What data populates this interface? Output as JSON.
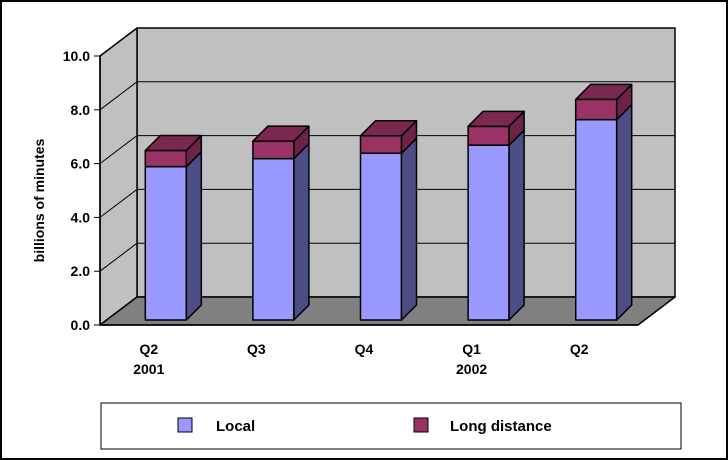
{
  "chart_data": {
    "type": "bar",
    "stacked": true,
    "three_d": true,
    "categories": [
      [
        "Q2",
        "2001"
      ],
      [
        "Q3"
      ],
      [
        "Q4"
      ],
      [
        "Q1",
        "2002"
      ],
      [
        "Q2"
      ]
    ],
    "series": [
      {
        "name": "Local",
        "values": [
          5.7,
          6.0,
          6.2,
          6.5,
          7.45
        ]
      },
      {
        "name": "Long distance",
        "values": [
          0.6,
          0.65,
          0.65,
          0.7,
          0.75
        ]
      }
    ],
    "ylabel": "billions of minutes",
    "ylim": [
      0,
      10
    ],
    "yticks": [
      "0.0",
      "2.0",
      "4.0",
      "6.0",
      "8.0",
      "10.0"
    ],
    "grid": true,
    "legend_position": "bottom",
    "colors": {
      "local_front": "#9999ff",
      "local_side": "#4d4d85",
      "long_front": "#993366",
      "long_side": "#6b2347",
      "long_top": "#7a2850",
      "floor": "#808080",
      "wall": "#c0c0c0"
    }
  }
}
